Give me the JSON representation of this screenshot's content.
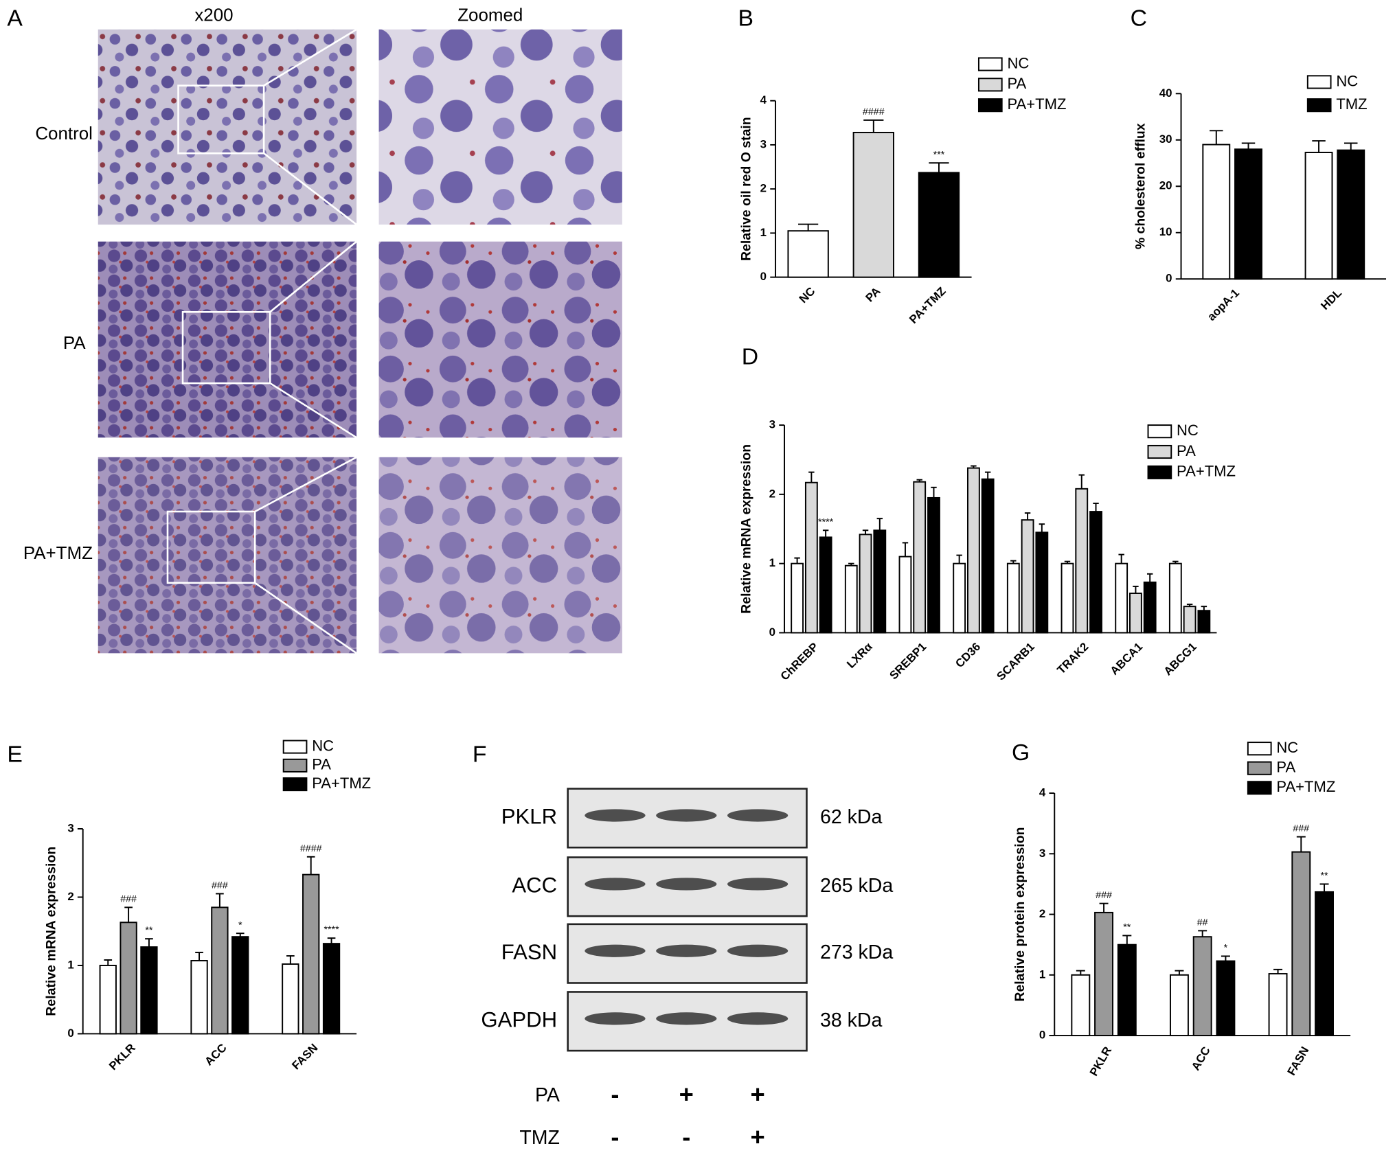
{
  "panel_a": {
    "panel": "A",
    "columns": [
      "x200",
      "Zoomed"
    ],
    "rows": [
      "Control",
      "PA",
      "PA+TMZ"
    ]
  },
  "panel_f": {
    "panel": "F",
    "blots": [
      {
        "protein": "PKLR",
        "size": "62 kDa"
      },
      {
        "protein": "ACC",
        "size": "265 kDa"
      },
      {
        "protein": "FASN",
        "size": "273 kDa"
      },
      {
        "protein": "GAPDH",
        "size": "38 kDa"
      }
    ],
    "treatments": [
      {
        "name": "PA",
        "lanes": [
          "-",
          "+",
          "+"
        ]
      },
      {
        "name": "TMZ",
        "lanes": [
          "-",
          "-",
          "+"
        ]
      }
    ]
  },
  "chart_data": [
    {
      "type": "bar",
      "panel": "B",
      "ylabel": "Relative oil red O stain",
      "categories": [
        "NC",
        "PA",
        "PA+TMZ"
      ],
      "values": [
        1.05,
        3.28,
        2.37
      ],
      "errors": [
        0.15,
        0.28,
        0.22
      ],
      "colors": [
        "#ffffff",
        "#d9d9d9",
        "#000000"
      ],
      "annotations": [
        null,
        "####",
        "***"
      ],
      "ylim": [
        0,
        4
      ],
      "yticks": [
        0,
        1,
        2,
        3,
        4
      ]
    },
    {
      "type": "bar",
      "panel": "C",
      "ylabel": "% cholesterol efflux",
      "categories": [
        "aopA-1",
        "HDL"
      ],
      "series": [
        {
          "name": "NC",
          "color": "#ffffff",
          "values": [
            29,
            27.3
          ],
          "errors": [
            3,
            2.5
          ]
        },
        {
          "name": "TMZ",
          "color": "#000000",
          "values": [
            28,
            27.8
          ],
          "errors": [
            1.3,
            1.5
          ]
        }
      ],
      "ylim": [
        0,
        40
      ],
      "yticks": [
        0,
        10,
        20,
        30,
        40
      ]
    },
    {
      "type": "bar",
      "panel": "D",
      "ylabel": "Relative mRNA  expression",
      "categories": [
        "ChREBP",
        "LXRα",
        "SREBP1",
        "CD36",
        "SCARB1",
        "TRAK2",
        "ABCA1",
        "ABCG1"
      ],
      "series": [
        {
          "name": "NC",
          "color": "#ffffff",
          "values": [
            1.0,
            0.97,
            1.1,
            1.0,
            1.0,
            1.0,
            1.0,
            1.0
          ],
          "errors": [
            0.08,
            0.03,
            0.2,
            0.12,
            0.04,
            0.03,
            0.13,
            0.03
          ]
        },
        {
          "name": "PA",
          "color": "#d9d9d9",
          "values": [
            2.17,
            1.42,
            2.18,
            2.38,
            1.63,
            2.08,
            0.57,
            0.38
          ],
          "errors": [
            0.15,
            0.06,
            0.03,
            0.03,
            0.1,
            0.2,
            0.1,
            0.03
          ]
        },
        {
          "name": "PA+TMZ",
          "color": "#000000",
          "values": [
            1.38,
            1.48,
            1.95,
            2.22,
            1.45,
            1.75,
            0.73,
            0.32
          ],
          "errors": [
            0.1,
            0.17,
            0.15,
            0.1,
            0.12,
            0.12,
            0.12,
            0.06
          ],
          "annotations": [
            "****",
            null,
            null,
            null,
            null,
            null,
            null,
            null
          ]
        }
      ],
      "ylim": [
        0,
        3
      ],
      "yticks": [
        0,
        1,
        2,
        3
      ]
    },
    {
      "type": "bar",
      "panel": "E",
      "ylabel": "Relative mRNA  expression",
      "categories": [
        "PKLR",
        "ACC",
        "FASN"
      ],
      "series": [
        {
          "name": "NC",
          "color": "#ffffff",
          "values": [
            1.0,
            1.07,
            1.02
          ],
          "errors": [
            0.08,
            0.12,
            0.12
          ]
        },
        {
          "name": "PA",
          "color": "#999999",
          "values": [
            1.63,
            1.85,
            2.33
          ],
          "errors": [
            0.22,
            0.2,
            0.26
          ],
          "annotations": [
            "###",
            "###",
            "####"
          ]
        },
        {
          "name": "PA+TMZ",
          "color": "#000000",
          "values": [
            1.27,
            1.42,
            1.32
          ],
          "errors": [
            0.12,
            0.05,
            0.08
          ],
          "annotations": [
            "**",
            "*",
            "****"
          ]
        }
      ],
      "ylim": [
        0,
        3
      ],
      "yticks": [
        0,
        1,
        2,
        3
      ]
    },
    {
      "type": "bar",
      "panel": "G",
      "ylabel": "Relative  protein  expression",
      "categories": [
        "PKLR",
        "ACC",
        "FASN"
      ],
      "series": [
        {
          "name": "NC",
          "color": "#ffffff",
          "values": [
            1.0,
            1.0,
            1.02
          ],
          "errors": [
            0.07,
            0.07,
            0.07
          ]
        },
        {
          "name": "PA",
          "color": "#999999",
          "values": [
            2.03,
            1.63,
            3.03
          ],
          "errors": [
            0.15,
            0.1,
            0.25
          ],
          "annotations": [
            "###",
            "##",
            "###"
          ]
        },
        {
          "name": "PA+TMZ",
          "color": "#000000",
          "values": [
            1.5,
            1.23,
            2.37
          ],
          "errors": [
            0.15,
            0.08,
            0.13
          ],
          "annotations": [
            "**",
            "*",
            "**"
          ]
        }
      ],
      "ylim": [
        0,
        4
      ],
      "yticks": [
        0,
        1,
        2,
        3,
        4
      ]
    }
  ]
}
